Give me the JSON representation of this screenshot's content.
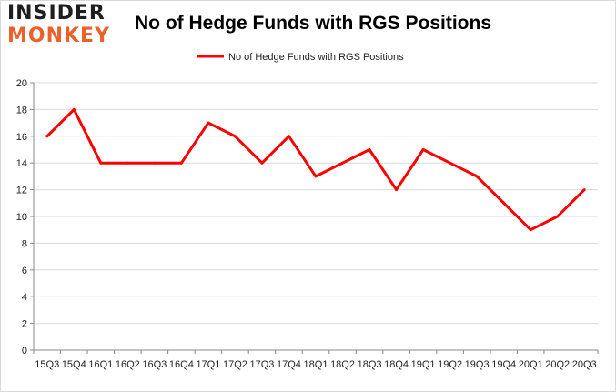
{
  "brand": {
    "line1": "INSIDER",
    "line2": "MONKEY",
    "accent": "#e8622a"
  },
  "chart_data": {
    "type": "line",
    "title": "No of Hedge Funds with RGS Positions",
    "xlabel": "",
    "ylabel": "",
    "categories": [
      "15Q3",
      "15Q4",
      "16Q1",
      "16Q2",
      "16Q3",
      "16Q4",
      "17Q1",
      "17Q2",
      "17Q3",
      "17Q4",
      "18Q1",
      "18Q2",
      "18Q3",
      "18Q4",
      "19Q1",
      "19Q2",
      "19Q3",
      "19Q4",
      "20Q1",
      "20Q2",
      "20Q3"
    ],
    "series": [
      {
        "name": "No of Hedge Funds with RGS Positions",
        "color": "#ff0000",
        "values": [
          16,
          18,
          14,
          14,
          14,
          14,
          17,
          16,
          14,
          16,
          13,
          14,
          15,
          12,
          15,
          14,
          13,
          11,
          9,
          10,
          12
        ]
      }
    ],
    "ylim": [
      0,
      20
    ],
    "yticks": [
      0,
      2,
      4,
      6,
      8,
      10,
      12,
      14,
      16,
      18,
      20
    ],
    "grid": true,
    "legend": "top-center"
  }
}
